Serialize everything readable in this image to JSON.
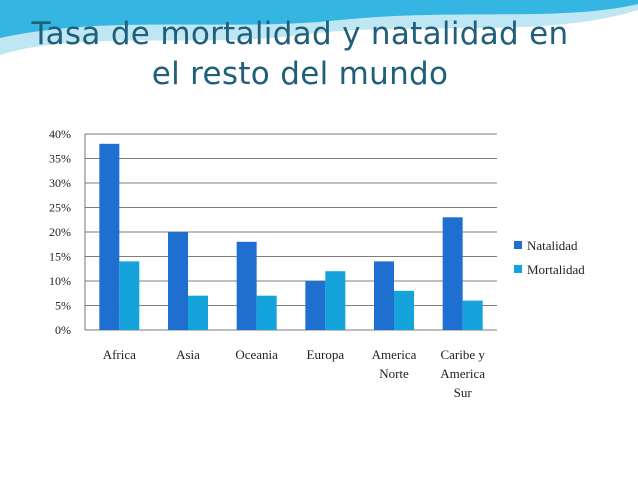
{
  "slide": {
    "title_line1": "Tasa de mortalidad y natalidad en",
    "title_line2": "el resto del mundo"
  },
  "colors": {
    "natalidad": "#1f6fd1",
    "mortalidad": "#14a3db",
    "gridline": "#555555",
    "wave_dark": "#35b6e2",
    "wave_light": "#bfe6f3"
  },
  "chart_data": {
    "type": "bar",
    "title": "",
    "xlabel": "",
    "ylabel": "",
    "categories": [
      [
        "Africa"
      ],
      [
        "Asia"
      ],
      [
        "Oceania"
      ],
      [
        "Europa"
      ],
      [
        "America",
        "Norte"
      ],
      [
        "Caribe y",
        "America",
        "Sur"
      ]
    ],
    "series": [
      {
        "name": "Natalidad",
        "values": [
          38,
          20,
          18,
          10,
          14,
          23
        ]
      },
      {
        "name": "Mortalidad",
        "values": [
          14,
          7,
          7,
          12,
          8,
          6
        ]
      }
    ],
    "ylim": [
      0,
      40
    ],
    "yticks": [
      "0%",
      "5%",
      "10%",
      "15%",
      "20%",
      "25%",
      "30%",
      "35%",
      "40%"
    ],
    "grid": true,
    "legend_position": "right"
  }
}
